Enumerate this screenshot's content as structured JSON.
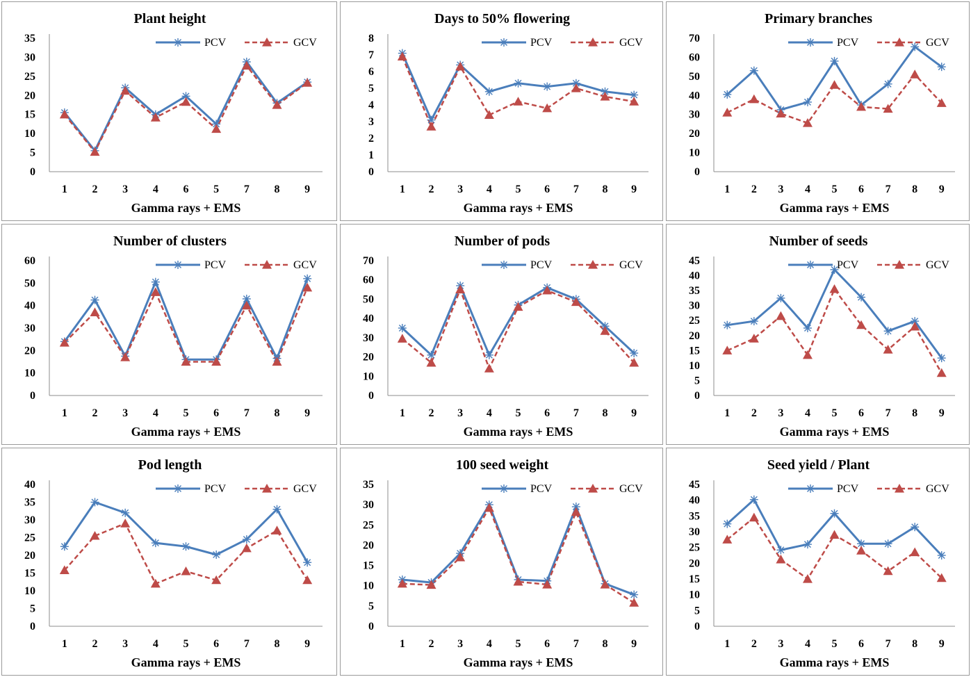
{
  "legend": {
    "pcv": "PCV",
    "gcv": "GCV"
  },
  "colors": {
    "pcv": "#4a7ebb",
    "gcv": "#be4b48"
  },
  "chart_data": [
    {
      "type": "line",
      "title": "Plant height",
      "xlabel": "Gamma rays + EMS",
      "ylabel": "",
      "categories": [
        "1",
        "2",
        "3",
        "4",
        "6",
        "5",
        "7",
        "8",
        "9"
      ],
      "ylim": [
        0,
        35
      ],
      "yticks": [
        0,
        5,
        10,
        15,
        20,
        25,
        30,
        35
      ],
      "legend_position": "top-right",
      "grid": false,
      "series": [
        {
          "name": "PCV",
          "values": [
            15.5,
            5.5,
            22,
            15,
            19.8,
            12.5,
            28.8,
            18,
            23.5
          ]
        },
        {
          "name": "GCV",
          "values": [
            15,
            5.2,
            21.2,
            14.2,
            18.3,
            11.2,
            27.8,
            17.5,
            23.3
          ]
        }
      ]
    },
    {
      "type": "line",
      "title": "Days to 50% flowering",
      "xlabel": "Gamma rays + EMS",
      "ylabel": "",
      "categories": [
        "1",
        "2",
        "3",
        "4",
        "5",
        "6",
        "7",
        "8",
        "9"
      ],
      "ylim": [
        0,
        8
      ],
      "yticks": [
        0,
        1,
        2,
        3,
        4,
        5,
        6,
        7,
        8
      ],
      "legend_position": "top-right",
      "grid": false,
      "series": [
        {
          "name": "PCV",
          "values": [
            7.1,
            3.1,
            6.4,
            4.8,
            5.3,
            5.1,
            5.3,
            4.8,
            4.6
          ]
        },
        {
          "name": "GCV",
          "values": [
            6.9,
            2.7,
            6.3,
            3.4,
            4.2,
            3.8,
            5.0,
            4.5,
            4.2
          ]
        }
      ]
    },
    {
      "type": "line",
      "title": "Primary branches",
      "xlabel": "Gamma rays + EMS",
      "ylabel": "",
      "categories": [
        "1",
        "2",
        "3",
        "4",
        "5",
        "6",
        "7",
        "8",
        "9"
      ],
      "ylim": [
        0,
        70
      ],
      "yticks": [
        0,
        10,
        20,
        30,
        40,
        50,
        60,
        70
      ],
      "legend_position": "top-right",
      "grid": false,
      "series": [
        {
          "name": "PCV",
          "values": [
            40.5,
            53,
            32.5,
            36.5,
            58,
            35,
            46,
            65.5,
            55
          ]
        },
        {
          "name": "GCV",
          "values": [
            31,
            38,
            30.5,
            25.5,
            45.5,
            34,
            33,
            51,
            36
          ]
        }
      ]
    },
    {
      "type": "line",
      "title": "Number of clusters",
      "xlabel": "Gamma rays + EMS",
      "ylabel": "",
      "categories": [
        "1",
        "2",
        "3",
        "4",
        "5",
        "6",
        "7",
        "8",
        "9"
      ],
      "ylim": [
        0,
        60
      ],
      "yticks": [
        0,
        10,
        20,
        30,
        40,
        50,
        60
      ],
      "legend_position": "top-right",
      "grid": false,
      "series": [
        {
          "name": "PCV",
          "values": [
            24,
            42.5,
            17.5,
            50.5,
            16,
            16,
            43,
            16.5,
            52
          ]
        },
        {
          "name": "GCV",
          "values": [
            23.5,
            37,
            17,
            46,
            15,
            15,
            40,
            15,
            48
          ]
        }
      ]
    },
    {
      "type": "line",
      "title": "Number of pods",
      "xlabel": "Gamma rays + EMS",
      "ylabel": "",
      "categories": [
        "1",
        "2",
        "3",
        "4",
        "5",
        "6",
        "7",
        "8",
        "9"
      ],
      "ylim": [
        0,
        70
      ],
      "yticks": [
        0,
        10,
        20,
        30,
        40,
        50,
        60,
        70
      ],
      "legend_position": "top-right",
      "grid": false,
      "series": [
        {
          "name": "PCV",
          "values": [
            35,
            21,
            57,
            21,
            47,
            56,
            50,
            36,
            22
          ]
        },
        {
          "name": "GCV",
          "values": [
            29.5,
            17,
            55,
            14,
            46,
            54.5,
            48.5,
            33.5,
            17
          ]
        }
      ]
    },
    {
      "type": "line",
      "title": "Number of seeds",
      "xlabel": "Gamma rays + EMS",
      "ylabel": "",
      "categories": [
        "1",
        "2",
        "3",
        "4",
        "5",
        "6",
        "7",
        "8",
        "9"
      ],
      "ylim": [
        0,
        45
      ],
      "yticks": [
        0,
        5,
        10,
        15,
        20,
        25,
        30,
        35,
        40,
        45
      ],
      "legend_position": "top-right",
      "grid": false,
      "series": [
        {
          "name": "PCV",
          "values": [
            23.5,
            24.8,
            32.5,
            22.5,
            42,
            32.8,
            21.5,
            24.8,
            12.5
          ]
        },
        {
          "name": "GCV",
          "values": [
            15,
            19,
            26.5,
            13.5,
            35.5,
            23.5,
            15.3,
            23,
            7.5
          ]
        }
      ]
    },
    {
      "type": "line",
      "title": "Pod length",
      "xlabel": "Gamma rays + EMS",
      "ylabel": "",
      "categories": [
        "1",
        "2",
        "3",
        "4",
        "5",
        "6",
        "7",
        "8",
        "9"
      ],
      "ylim": [
        0,
        40
      ],
      "yticks": [
        0,
        5,
        10,
        15,
        20,
        25,
        30,
        35,
        40
      ],
      "legend_position": "top-right",
      "grid": false,
      "series": [
        {
          "name": "PCV",
          "values": [
            22.5,
            35,
            32,
            23.5,
            22.5,
            20.2,
            24.5,
            33,
            18
          ]
        },
        {
          "name": "GCV",
          "values": [
            15.8,
            25.5,
            29,
            12,
            15.5,
            13,
            22,
            27,
            13
          ]
        }
      ]
    },
    {
      "type": "line",
      "title": "100 seed weight",
      "xlabel": "Gamma rays + EMS",
      "ylabel": "",
      "categories": [
        "1",
        "2",
        "3",
        "4",
        "5",
        "6",
        "7",
        "8",
        "9"
      ],
      "ylim": [
        0,
        35
      ],
      "yticks": [
        0,
        5,
        10,
        15,
        20,
        25,
        30,
        35
      ],
      "legend_position": "top-right",
      "grid": false,
      "series": [
        {
          "name": "PCV",
          "values": [
            11.5,
            10.8,
            18,
            30,
            11.5,
            11.2,
            29.5,
            10.5,
            7.8
          ]
        },
        {
          "name": "GCV",
          "values": [
            10.5,
            10.2,
            17,
            29.2,
            11,
            10.3,
            28.2,
            10.3,
            5.8
          ]
        }
      ]
    },
    {
      "type": "line",
      "title": "Seed yield / Plant",
      "xlabel": "Gamma rays + EMS",
      "ylabel": "",
      "categories": [
        "1",
        "2",
        "3",
        "4",
        "5",
        "6",
        "7",
        "8",
        "9"
      ],
      "ylim": [
        0,
        45
      ],
      "yticks": [
        0,
        5,
        10,
        15,
        20,
        25,
        30,
        35,
        40,
        45
      ],
      "legend_position": "top-right",
      "grid": false,
      "series": [
        {
          "name": "PCV",
          "values": [
            32.5,
            40.2,
            24.2,
            26,
            35.8,
            26.2,
            26.2,
            31.5,
            22.5
          ]
        },
        {
          "name": "GCV",
          "values": [
            27.5,
            34.5,
            21.2,
            15,
            29,
            24,
            17.5,
            23.5,
            15.3
          ]
        }
      ]
    }
  ]
}
